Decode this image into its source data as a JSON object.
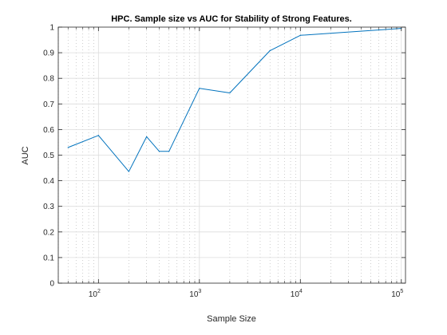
{
  "chart_data": {
    "type": "line",
    "title": "HPC. Sample size vs AUC for Stability of Strong Features.",
    "xlabel": "Sample Size",
    "ylabel": "AUC",
    "xscale": "log",
    "xlim": [
      40,
      110000
    ],
    "ylim": [
      0,
      1
    ],
    "grid": true,
    "minor_grid": true,
    "legend": "none",
    "line_color": "#0072BD",
    "x_ticks": [
      {
        "value": 100,
        "base": "10",
        "exp": "2"
      },
      {
        "value": 1000,
        "base": "10",
        "exp": "3"
      },
      {
        "value": 10000,
        "base": "10",
        "exp": "4"
      },
      {
        "value": 100000,
        "base": "10",
        "exp": "5"
      }
    ],
    "y_ticks": [
      0,
      0.1,
      0.2,
      0.3,
      0.4,
      0.5,
      0.6,
      0.7,
      0.8,
      0.9,
      1
    ],
    "series": [
      {
        "x": [
          50,
          100,
          200,
          300,
          400,
          500,
          1000,
          2000,
          5000,
          10000,
          100000
        ],
        "y": [
          0.53,
          0.577,
          0.436,
          0.572,
          0.515,
          0.515,
          0.761,
          0.743,
          0.908,
          0.968,
          0.995
        ]
      }
    ]
  }
}
